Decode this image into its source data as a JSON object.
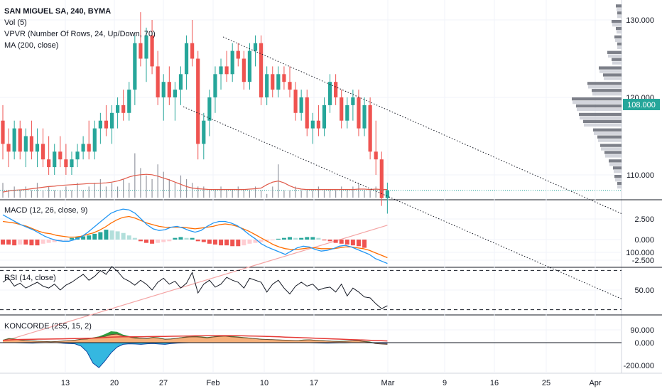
{
  "header": {
    "title": "SAN MIGUEL SA, 240, BYMA",
    "vol": "Vol (5)",
    "vpvr": "VPVR (Number Of Rows, 24, Up/Down, 70)",
    "ma": "MA (200, close)"
  },
  "colors": {
    "up": "#26a69a",
    "down": "#ef5350",
    "ma": "#f4a4a4",
    "volma": "#e05a4a",
    "macd": "#2196f3",
    "signal": "#ff6d00",
    "rsi": "#131722",
    "kon_fill": "#f5b07a",
    "kon_green": "#2e9e3e",
    "kon_blue": "#35b7e0",
    "kon_red": "#e53935",
    "price_tag": "#26a69a"
  },
  "x_axis": {
    "ticks": [
      "13",
      "20",
      "27",
      "Feb",
      "10",
      "17",
      "Mar",
      "9",
      "16",
      "25",
      "Apr"
    ]
  },
  "main": {
    "y_ticks": [
      "130.000",
      "120.000",
      "110.000",
      "100.000",
      "90.000"
    ],
    "last_price": "108.000"
  },
  "chart_data": [
    {
      "type": "candlestick",
      "title": "SAN MIGUEL SA, 240, BYMA",
      "ylim": [
        82,
        133
      ],
      "ohlc": [
        [
          117,
          119,
          112,
          114
        ],
        [
          114,
          116,
          111,
          113
        ],
        [
          113,
          117,
          112,
          116
        ],
        [
          116,
          117,
          112,
          113
        ],
        [
          113,
          116,
          111,
          115
        ],
        [
          115,
          117,
          112,
          113
        ],
        [
          113,
          116,
          111,
          114
        ],
        [
          114,
          116,
          111,
          112
        ],
        [
          112,
          115,
          110,
          111
        ],
        [
          111,
          114,
          110,
          113
        ],
        [
          113,
          115,
          111,
          112
        ],
        [
          112,
          114,
          110,
          111
        ],
        [
          111,
          113,
          110,
          112
        ],
        [
          112,
          114,
          111,
          113
        ],
        [
          113,
          115,
          112,
          114
        ],
        [
          114,
          117,
          112,
          113
        ],
        [
          113,
          117,
          112,
          116
        ],
        [
          116,
          118,
          114,
          117
        ],
        [
          117,
          119,
          115,
          116
        ],
        [
          116,
          119,
          114,
          118
        ],
        [
          118,
          120,
          116,
          119
        ],
        [
          119,
          121,
          117,
          118
        ],
        [
          118,
          122,
          117,
          121
        ],
        [
          121,
          128,
          119,
          127
        ],
        [
          127,
          131,
          124,
          125
        ],
        [
          125,
          129,
          122,
          128
        ],
        [
          128,
          130,
          123,
          124
        ],
        [
          124,
          126,
          119,
          120
        ],
        [
          120,
          123,
          117,
          122
        ],
        [
          122,
          124,
          119,
          120
        ],
        [
          120,
          122,
          117,
          121
        ],
        [
          121,
          124,
          119,
          123
        ],
        [
          123,
          128,
          121,
          127
        ],
        [
          127,
          130,
          124,
          125
        ],
        [
          125,
          126,
          112,
          114
        ],
        [
          114,
          118,
          112,
          117
        ],
        [
          117,
          121,
          115,
          120
        ],
        [
          120,
          124,
          118,
          123
        ],
        [
          123,
          125,
          121,
          124
        ],
        [
          124,
          126,
          122,
          123
        ],
        [
          123,
          127,
          122,
          126
        ],
        [
          126,
          127,
          124,
          125
        ],
        [
          125,
          126,
          121,
          122
        ],
        [
          122,
          127,
          121,
          126
        ],
        [
          126,
          128,
          124,
          127
        ],
        [
          127,
          128,
          119,
          120
        ],
        [
          120,
          124,
          119,
          123
        ],
        [
          123,
          124,
          120,
          121
        ],
        [
          121,
          124,
          120,
          123
        ],
        [
          123,
          124,
          121,
          122
        ],
        [
          122,
          124,
          120,
          121
        ],
        [
          121,
          122,
          117,
          118
        ],
        [
          118,
          121,
          117,
          120
        ],
        [
          120,
          121,
          115,
          116
        ],
        [
          116,
          118,
          114,
          117
        ],
        [
          117,
          119,
          115,
          116
        ],
        [
          116,
          120,
          115,
          119
        ],
        [
          119,
          123,
          118,
          122
        ],
        [
          122,
          123,
          119,
          120
        ],
        [
          120,
          121,
          116,
          117
        ],
        [
          117,
          120,
          116,
          119
        ],
        [
          119,
          121,
          117,
          120
        ],
        [
          120,
          121,
          115,
          116
        ],
        [
          116,
          120,
          115,
          119
        ],
        [
          119,
          120,
          112,
          113
        ],
        [
          113,
          117,
          110,
          112
        ],
        [
          112,
          113,
          106,
          107
        ],
        [
          107,
          109,
          105,
          108
        ]
      ],
      "ma": [
        88.5,
        103.5
      ]
    },
    {
      "type": "bar",
      "title": "Vol (5)",
      "values": [
        4,
        2,
        3,
        2,
        3,
        2,
        4,
        2,
        3,
        2,
        2,
        3,
        2,
        4,
        2,
        3,
        4,
        5,
        3,
        4,
        3,
        5,
        4,
        12,
        8,
        6,
        5,
        9,
        7,
        5,
        4,
        6,
        5,
        4,
        3,
        3,
        2,
        2,
        3,
        2,
        2,
        3,
        2,
        2,
        3,
        2,
        1,
        3,
        9,
        2,
        2,
        3,
        2,
        2,
        2,
        3,
        2,
        2,
        2,
        3,
        2,
        3,
        4,
        2,
        2,
        3,
        2,
        2
      ],
      "ma": [
        1.5,
        1.8,
        2,
        2.1,
        2.2,
        2.4,
        2.6,
        2.8,
        3,
        3.1,
        3.3,
        3.4,
        3.5,
        3.6,
        3.7,
        3.8,
        3.8,
        3.9,
        4,
        4.2,
        4.5,
        5,
        5.6,
        6,
        6.2,
        6.3,
        6.2,
        5.8,
        5.3,
        4.8,
        4.2,
        3.6,
        3,
        2.6,
        2.4,
        2.3,
        2.2,
        2.2,
        2.2,
        2.2,
        2.2,
        2.2,
        2.2,
        2.3,
        2.4,
        2.6,
        3.5,
        4.2,
        4.5,
        4,
        3.2,
        2.6,
        2.3,
        2.2,
        2.2,
        2.2,
        2.2,
        2.2,
        2.2,
        2.2,
        2.2,
        2.2,
        2.3,
        2.3,
        2.2,
        2.3,
        2.2,
        2.2
      ]
    },
    {
      "type": "line",
      "title": "MACD (12, 26, close, 9)",
      "y_ticks": [
        "2.500",
        "0.000",
        "-2.500"
      ],
      "macd": [
        3,
        2.6,
        2.2,
        1.8,
        1.5,
        1.2,
        0.8,
        0.4,
        0.1,
        -0.1,
        -0.2,
        -0.2,
        0,
        0.3,
        0.8,
        1.4,
        2,
        2.6,
        3.2,
        3.5,
        3.7,
        3.6,
        3.2,
        2.5,
        1.8,
        1.3,
        1.1,
        1.2,
        1.5,
        1.6,
        1.4,
        1.1,
        0.9,
        1.1,
        1.6,
        2,
        2.2,
        2.2,
        2,
        1.7,
        1.2,
        0.6,
        0.1,
        -0.5,
        -0.9,
        -1.2,
        -1.5,
        -1.8,
        -1.4,
        -1,
        -0.8,
        -0.9,
        -1.2,
        -1.4,
        -1.3,
        -1.1,
        -0.8,
        -0.7,
        -0.9,
        -1.2,
        -1.5,
        -1.8,
        -2.3,
        -2.6,
        -2.9
      ],
      "signal": [
        2.2,
        2.1,
        2,
        1.8,
        1.6,
        1.3,
        1,
        0.8,
        0.7,
        0.5,
        0.4,
        0.3,
        0.3,
        0.4,
        0.6,
        0.8,
        1.1,
        1.5,
        2,
        2.4,
        2.7,
        2.8,
        2.6,
        2.3,
        2,
        1.8,
        1.6,
        1.5,
        1.5,
        1.5,
        1.5,
        1.4,
        1.3,
        1.4,
        1.5,
        1.6,
        1.8,
        1.9,
        1.8,
        1.6,
        1.3,
        1,
        0.6,
        0.2,
        -0.2,
        -0.6,
        -0.9,
        -1.1,
        -1.2,
        -1.2,
        -1.1,
        -1,
        -1,
        -1.1,
        -1.1,
        -1.1,
        -1,
        -0.9,
        -0.9,
        -1,
        -1.1,
        -1.3,
        -1.6,
        -1.9,
        -2.2
      ],
      "hist": [
        -0.6,
        -0.6,
        -0.7,
        -0.6,
        -0.6,
        -0.7,
        -0.7,
        -0.5,
        -0.4,
        -0.3,
        -0.2,
        -0.1,
        0.2,
        0.3,
        0.4,
        0.5,
        0.7,
        0.9,
        1.2,
        1.1,
        1,
        0.8,
        0.5,
        0.2,
        -0.2,
        -0.4,
        -0.5,
        -0.4,
        -0.3,
        -0.2,
        0.2,
        0.3,
        0.2,
        0.2,
        -0.2,
        -0.3,
        -0.5,
        -0.6,
        -0.7,
        -0.7,
        -0.8,
        -0.8,
        -0.7,
        -0.5,
        -0.4,
        -0.3,
        -0.2,
        -0.1,
        0.1,
        0.2,
        0.3,
        0.2,
        0.2,
        0.3,
        0.3,
        0.2,
        -0.1,
        -0.2,
        -0.4,
        -0.5,
        -0.6,
        -0.7,
        -0.8,
        -1
      ],
      "ylim": [
        -3.5,
        4
      ]
    },
    {
      "type": "line",
      "title": "RSI (14, close)",
      "y_ticks": [
        "50.00"
      ],
      "values": [
        58,
        62,
        54,
        57,
        52,
        55,
        58,
        54,
        52,
        56,
        50,
        55,
        58,
        62,
        66,
        60,
        64,
        70,
        66,
        74,
        69,
        62,
        59,
        55,
        60,
        56,
        50,
        58,
        62,
        56,
        59,
        52,
        57,
        68,
        47,
        56,
        60,
        53,
        56,
        63,
        60,
        58,
        52,
        62,
        60,
        58,
        48,
        56,
        60,
        52,
        46,
        54,
        58,
        54,
        56,
        50,
        52,
        53,
        48,
        56,
        44,
        52,
        48,
        43,
        42,
        36,
        31,
        34
      ],
      "levels": [
        70,
        30
      ],
      "ylim": [
        25,
        80
      ]
    },
    {
      "type": "area",
      "title": "KONCORDE (255, 15, 2)",
      "y_ticks": [
        "0.000",
        "-200.000"
      ],
      "brown": [
        20,
        35,
        30,
        22,
        18,
        15,
        12,
        10,
        8,
        10,
        14,
        18,
        22,
        30,
        32,
        40,
        48,
        55,
        70,
        75,
        60,
        50,
        40,
        38,
        35,
        45,
        40,
        30,
        32,
        38,
        45,
        50,
        52,
        48,
        42,
        50,
        55,
        58,
        52,
        48,
        44,
        40,
        35,
        30,
        28,
        26,
        24,
        22,
        20,
        18,
        22,
        25,
        20,
        18,
        15,
        12,
        10,
        12,
        15,
        18,
        10,
        5,
        -8,
        -12,
        -15
      ],
      "green": [
        25,
        40,
        35,
        26,
        20,
        18,
        15,
        12,
        10,
        12,
        16,
        20,
        24,
        32,
        36,
        45,
        55,
        75,
        100,
        95,
        70,
        58,
        48,
        42,
        40,
        50,
        45,
        34,
        36,
        42,
        50,
        55,
        58,
        54,
        48,
        54,
        60,
        62,
        58,
        54,
        48,
        44,
        38,
        34,
        30,
        28,
        26,
        24,
        22,
        20,
        26,
        28,
        24,
        22,
        18,
        15,
        14,
        16,
        18,
        22,
        15,
        10,
        -2,
        -8,
        -10
      ],
      "blue": [
        0,
        0,
        0,
        -2,
        -3,
        -4,
        -2,
        0,
        0,
        0,
        -5,
        -8,
        -10,
        -30,
        -80,
        -180,
        -220,
        -160,
        -90,
        -40,
        -15,
        -10,
        -12,
        -15,
        -10,
        -8,
        -12,
        -15,
        -8,
        -4,
        -2,
        0,
        0,
        0,
        0,
        0,
        0,
        0,
        0,
        0,
        0,
        0,
        0,
        0,
        0,
        0,
        0,
        0,
        0,
        0,
        0,
        0,
        -2,
        -3,
        -4,
        -3,
        -2,
        -1,
        0,
        0,
        0,
        0,
        -2,
        -4,
        -6
      ],
      "red": [
        20,
        24,
        27,
        28,
        29,
        30,
        31,
        31,
        32,
        33,
        34,
        35,
        36,
        37,
        38,
        40,
        42,
        45,
        48,
        50,
        51,
        52,
        52,
        52,
        53,
        54,
        55,
        55,
        56,
        57,
        58,
        59,
        60,
        60,
        61,
        61,
        62,
        62,
        62,
        61,
        60,
        59,
        58,
        56,
        55,
        53,
        51,
        49,
        47,
        45,
        43,
        41,
        39,
        37,
        35,
        33,
        31,
        29,
        27,
        25,
        23,
        21,
        19,
        17,
        15
      ],
      "ylim": [
        -240,
        110
      ]
    }
  ]
}
